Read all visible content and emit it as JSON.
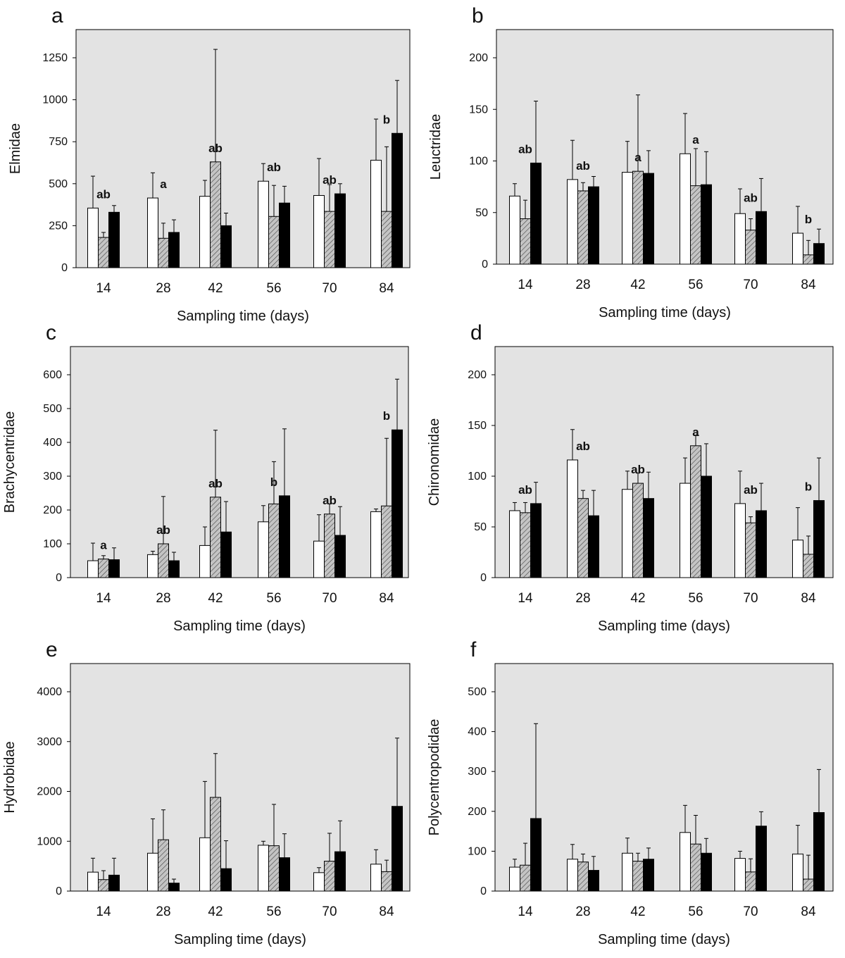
{
  "figure": {
    "xlabel": "Sampling time (days)",
    "x_categories": [
      "14",
      "28",
      "42",
      "56",
      "70",
      "84"
    ],
    "colors": {
      "plot_background": "#e3e3e3",
      "open_bar": "#ffffff",
      "hatched_bar": "#bdbdbd",
      "solid_bar": "#000000",
      "axis": "#000000"
    }
  },
  "chart_data": [
    {
      "panel": "a",
      "type": "bar",
      "ylabel": "Elmidae",
      "ylim": [
        0,
        1250
      ],
      "yticks": [
        0,
        250,
        500,
        750,
        1000,
        1250
      ],
      "categories": [
        "14",
        "28",
        "42",
        "56",
        "70",
        "84"
      ],
      "series": [
        {
          "values": [
            355,
            415,
            425,
            515,
            430,
            640
          ],
          "errors": [
            190,
            150,
            95,
            105,
            220,
            245
          ]
        },
        {
          "values": [
            180,
            175,
            630,
            305,
            335,
            335
          ],
          "errors": [
            30,
            90,
            670,
            185,
            160,
            385
          ]
        },
        {
          "values": [
            330,
            210,
            250,
            385,
            440,
            800
          ],
          "errors": [
            40,
            75,
            75,
            100,
            60,
            315
          ]
        }
      ],
      "significance_labels": [
        "ab",
        "a",
        "ab",
        "ab",
        "ab",
        "b"
      ]
    },
    {
      "panel": "b",
      "type": "bar",
      "ylabel": "Leuctridae",
      "ylim": [
        0,
        200
      ],
      "yticks": [
        0,
        50,
        100,
        150,
        200
      ],
      "categories": [
        "14",
        "28",
        "42",
        "56",
        "70",
        "84"
      ],
      "series": [
        {
          "values": [
            66,
            82,
            89,
            107,
            49,
            30
          ],
          "errors": [
            12,
            38,
            30,
            39,
            24,
            26
          ]
        },
        {
          "values": [
            44,
            71,
            90,
            76,
            33,
            9
          ],
          "errors": [
            18,
            8,
            74,
            36,
            11,
            14
          ]
        },
        {
          "values": [
            98,
            75,
            88,
            77,
            51,
            20
          ],
          "errors": [
            60,
            10,
            22,
            32,
            32,
            14
          ]
        }
      ],
      "significance_labels": [
        "ab",
        "ab",
        "a",
        "a",
        "ab",
        "b"
      ]
    },
    {
      "panel": "c",
      "type": "bar",
      "ylabel": "Brachycentridae",
      "ylim": [
        0,
        600
      ],
      "yticks": [
        0,
        100,
        200,
        300,
        400,
        500,
        600
      ],
      "categories": [
        "14",
        "28",
        "42",
        "56",
        "70",
        "84"
      ],
      "series": [
        {
          "values": [
            50,
            68,
            95,
            165,
            108,
            195
          ],
          "errors": [
            52,
            10,
            55,
            48,
            78,
            8
          ]
        },
        {
          "values": [
            55,
            100,
            238,
            218,
            188,
            212
          ],
          "errors": [
            10,
            140,
            198,
            125,
            30,
            200
          ]
        },
        {
          "values": [
            53,
            50,
            135,
            242,
            125,
            437
          ],
          "errors": [
            35,
            25,
            90,
            198,
            85,
            150
          ]
        }
      ],
      "significance_labels": [
        "a",
        "ab",
        "ab",
        "b",
        "ab",
        "b"
      ]
    },
    {
      "panel": "d",
      "type": "bar",
      "ylabel": "Chironomidae",
      "ylim": [
        0,
        200
      ],
      "yticks": [
        0,
        50,
        100,
        150,
        200
      ],
      "categories": [
        "14",
        "28",
        "42",
        "56",
        "70",
        "84"
      ],
      "series": [
        {
          "values": [
            66,
            116,
            87,
            93,
            73,
            37
          ],
          "errors": [
            8,
            30,
            18,
            25,
            32,
            32
          ]
        },
        {
          "values": [
            64,
            78,
            93,
            130,
            54,
            23
          ],
          "errors": [
            10,
            8,
            10,
            10,
            6,
            18
          ]
        },
        {
          "values": [
            73,
            61,
            78,
            100,
            66,
            76
          ],
          "errors": [
            21,
            25,
            26,
            32,
            27,
            42
          ]
        }
      ],
      "significance_labels": [
        "ab",
        "ab",
        "ab",
        "a",
        "ab",
        "b"
      ]
    },
    {
      "panel": "e",
      "type": "bar",
      "ylabel": "Hydrobidae",
      "ylim": [
        0,
        4000
      ],
      "yticks": [
        0,
        1000,
        2000,
        3000,
        4000
      ],
      "categories": [
        "14",
        "28",
        "42",
        "56",
        "70",
        "84"
      ],
      "series": [
        {
          "values": [
            380,
            760,
            1070,
            920,
            370,
            540
          ],
          "errors": [
            280,
            690,
            1130,
            80,
            100,
            290
          ]
        },
        {
          "values": [
            230,
            1030,
            1880,
            910,
            600,
            390
          ],
          "errors": [
            180,
            600,
            880,
            830,
            560,
            230
          ]
        },
        {
          "values": [
            320,
            160,
            450,
            670,
            790,
            1700
          ],
          "errors": [
            340,
            80,
            560,
            480,
            620,
            1370
          ]
        }
      ],
      "significance_labels": [
        "",
        "",
        "",
        "",
        "",
        ""
      ]
    },
    {
      "panel": "f",
      "type": "bar",
      "ylabel": "Polycentropodidae",
      "ylim": [
        0,
        500
      ],
      "yticks": [
        0,
        100,
        200,
        300,
        400,
        500
      ],
      "categories": [
        "14",
        "28",
        "42",
        "56",
        "70",
        "84"
      ],
      "series": [
        {
          "values": [
            60,
            80,
            95,
            147,
            82,
            93
          ],
          "errors": [
            20,
            37,
            38,
            68,
            18,
            72
          ]
        },
        {
          "values": [
            65,
            73,
            75,
            118,
            48,
            30
          ],
          "errors": [
            55,
            20,
            20,
            72,
            33,
            60
          ]
        },
        {
          "values": [
            182,
            52,
            80,
            95,
            163,
            197
          ],
          "errors": [
            238,
            35,
            28,
            37,
            36,
            108
          ]
        }
      ],
      "significance_labels": [
        "",
        "",
        "",
        "",
        "",
        ""
      ]
    }
  ]
}
